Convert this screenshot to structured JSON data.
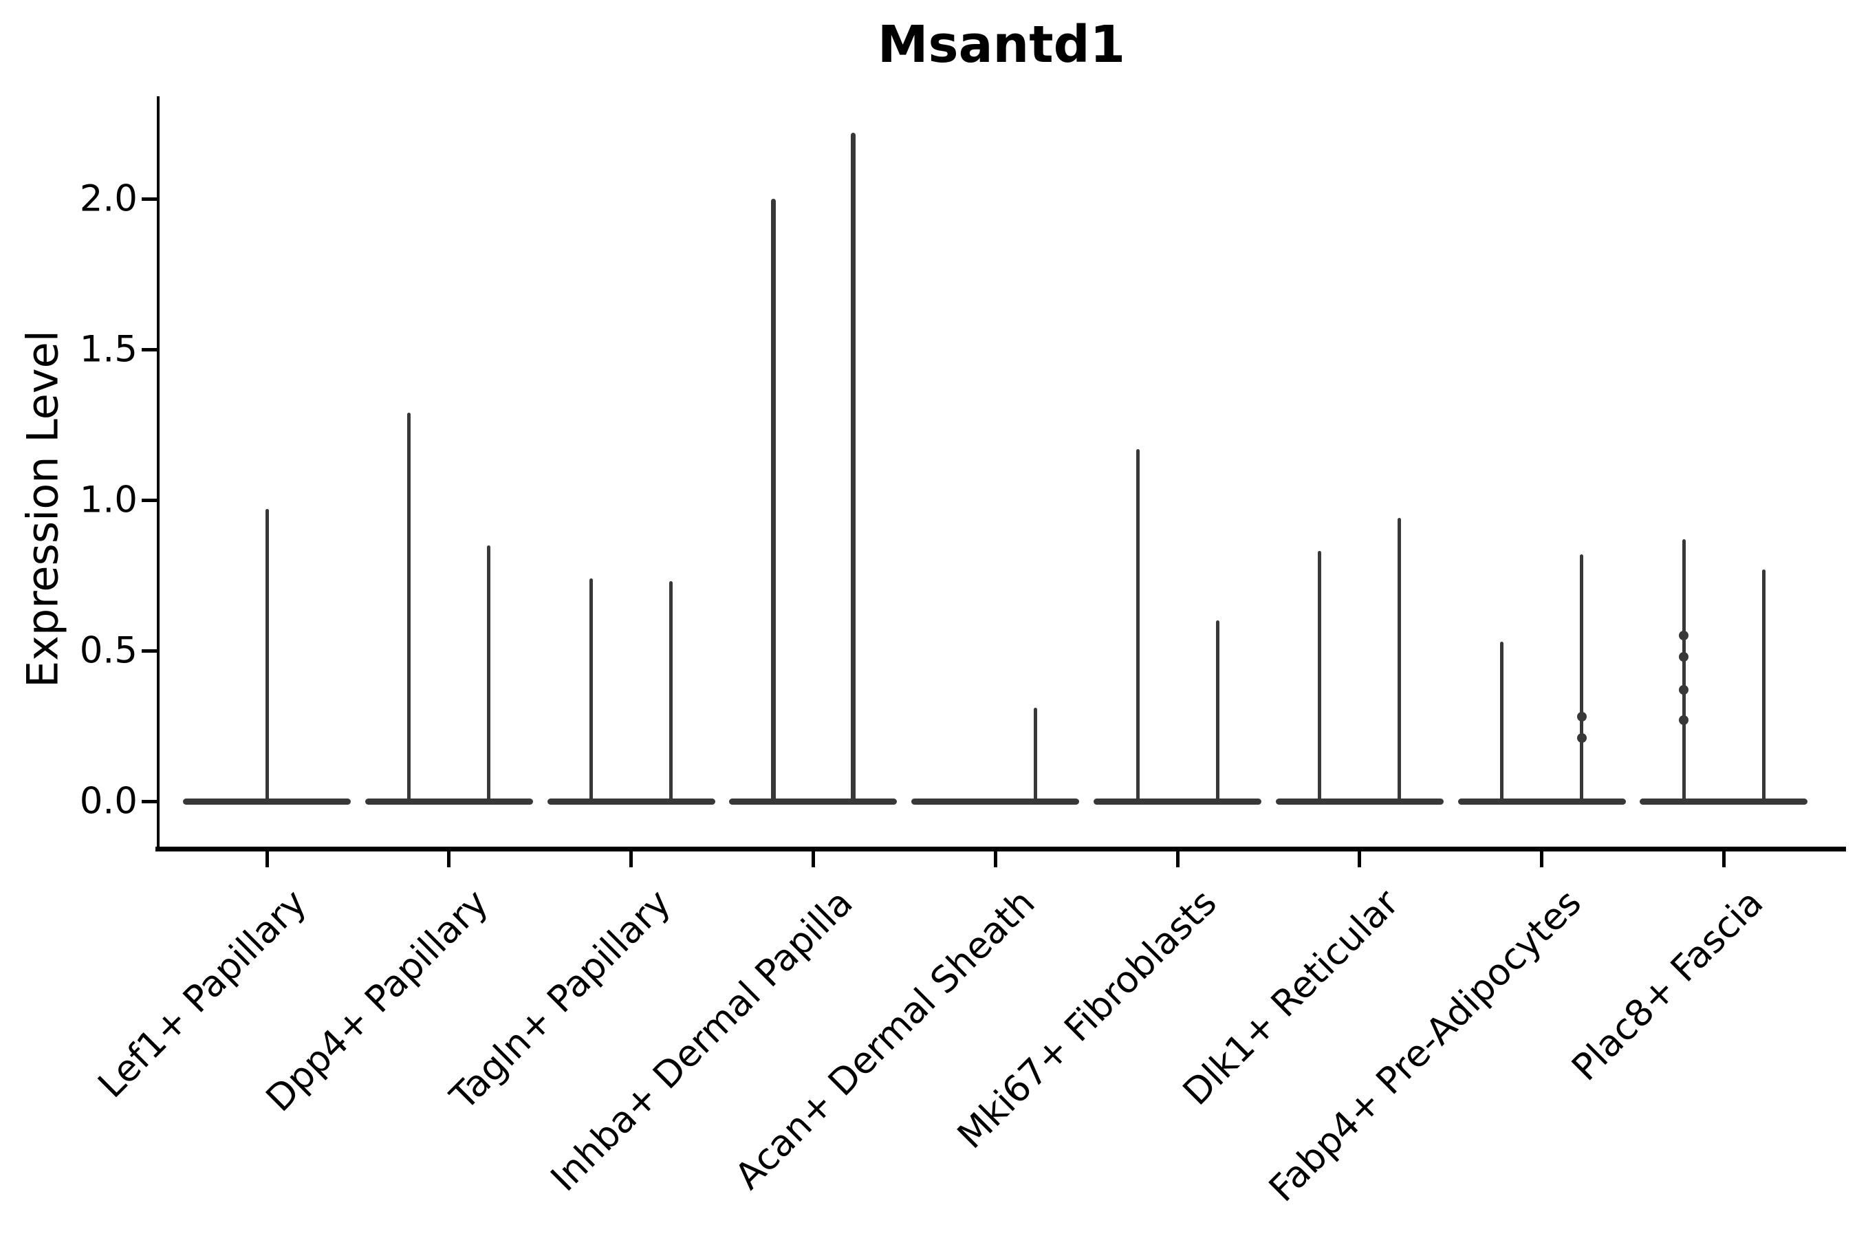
{
  "figure": {
    "background_color": "#ffffff",
    "ink_color": "#000000",
    "violin_color": "#383838"
  },
  "chart_data": {
    "type": "violin",
    "title": "Msantd1",
    "xlabel": "",
    "ylabel": "Expression Level",
    "ylim": [
      -0.16,
      2.35
    ],
    "yticks": [
      0.0,
      0.5,
      1.0,
      1.5,
      2.0
    ],
    "ytick_labels": [
      "0.0",
      "0.5",
      "1.0",
      "1.5",
      "2.0"
    ],
    "grid": false,
    "legend": "none",
    "x_label_rotation_deg": 45,
    "shape_note": "Collapsed violins: dense flat base at expression 0 with a thin vertical spike up to the max-expressing cells; small knots mark sparse intermediate cells.",
    "categories": [
      "Lef1+ Papillary",
      "Dpp4+ Papillary",
      "Tagln+ Papillary",
      "Inhba+ Dermal Papilla",
      "Acan+ Dermal Sheath",
      "Mki67+ Fibroblasts",
      "Dlk1+ Reticular",
      "Fabp4+ Pre-Adipocytes",
      "Plac8+ Fascia"
    ],
    "violins": [
      {
        "category": "Lef1+ Papillary",
        "spikes": [
          {
            "position": "center",
            "max": 0.97,
            "bumps": []
          }
        ]
      },
      {
        "category": "Dpp4+ Papillary",
        "spikes": [
          {
            "position": "left",
            "max": 1.29,
            "bumps": []
          },
          {
            "position": "right",
            "max": 0.85,
            "bumps": []
          }
        ]
      },
      {
        "category": "Tagln+ Papillary",
        "spikes": [
          {
            "position": "left",
            "max": 0.74,
            "bumps": []
          },
          {
            "position": "right",
            "max": 0.73,
            "bumps": []
          }
        ]
      },
      {
        "category": "Inhba+ Dermal Papilla",
        "spikes": [
          {
            "position": "left",
            "max": 2.0,
            "bumps": [],
            "wide": true
          },
          {
            "position": "right",
            "max": 2.22,
            "bumps": [],
            "wide": true
          }
        ]
      },
      {
        "category": "Acan+ Dermal Sheath",
        "spikes": [
          {
            "position": "left",
            "max": 0.0,
            "bumps": []
          },
          {
            "position": "right",
            "max": 0.31,
            "bumps": []
          }
        ]
      },
      {
        "category": "Mki67+ Fibroblasts",
        "spikes": [
          {
            "position": "left",
            "max": 1.17,
            "bumps": []
          },
          {
            "position": "right",
            "max": 0.6,
            "bumps": []
          }
        ]
      },
      {
        "category": "Dlk1+ Reticular",
        "spikes": [
          {
            "position": "left",
            "max": 0.83,
            "bumps": []
          },
          {
            "position": "right",
            "max": 0.94,
            "bumps": []
          }
        ]
      },
      {
        "category": "Fabp4+ Pre-Adipocytes",
        "spikes": [
          {
            "position": "left",
            "max": 0.53,
            "bumps": []
          },
          {
            "position": "right",
            "max": 0.82,
            "bumps": [
              0.28,
              0.21
            ]
          }
        ]
      },
      {
        "category": "Plac8+ Fascia",
        "spikes": [
          {
            "position": "left",
            "max": 0.87,
            "bumps": [
              0.55,
              0.48,
              0.37,
              0.27
            ]
          },
          {
            "position": "right",
            "max": 0.77,
            "bumps": []
          }
        ]
      }
    ]
  }
}
